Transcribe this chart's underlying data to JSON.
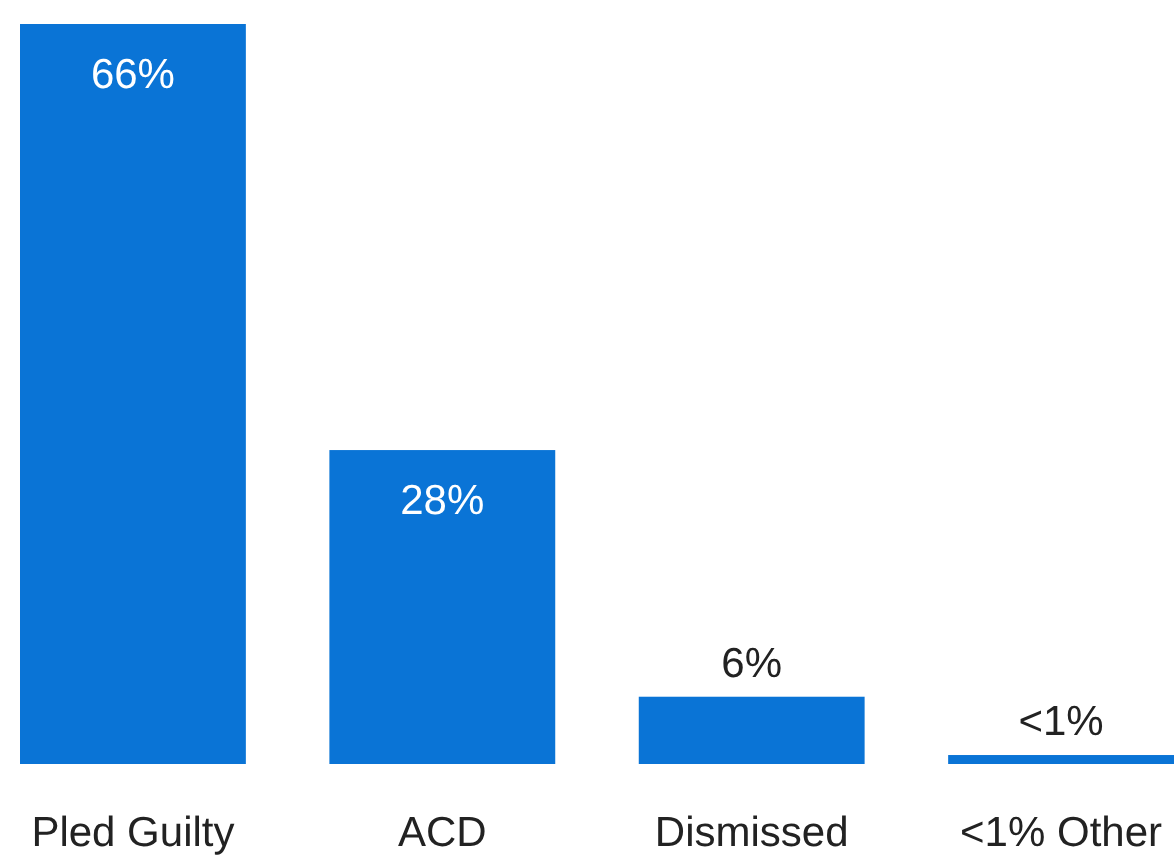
{
  "chart_data": {
    "type": "bar",
    "categories": [
      "Pled Guilty",
      "ACD",
      "Dismissed",
      "<1% Other"
    ],
    "values": [
      66,
      28,
      6,
      0.8
    ],
    "value_labels": [
      "66%",
      "28%",
      "6%",
      "<1%"
    ],
    "color": "#0a74d6"
  }
}
